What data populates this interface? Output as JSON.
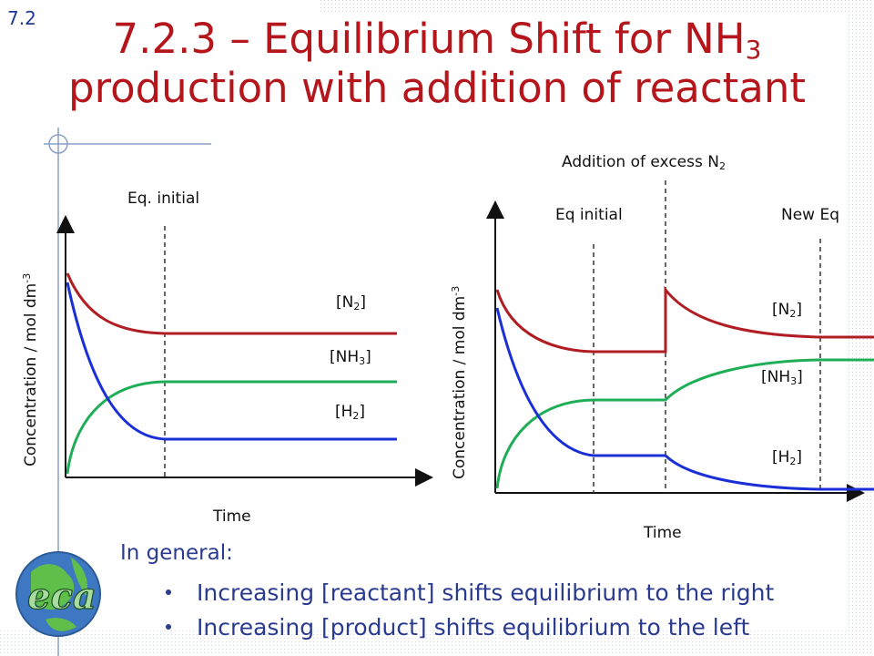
{
  "section_number": "7.2",
  "title": {
    "line1_prefix": "7.2.3 – Equilibrium Shift for NH",
    "line1_sub": "3",
    "line2": "production with addition of reactant"
  },
  "left_chart": {
    "event_label": "Eq. initial",
    "ylabel": "Concentration / mol dm",
    "ylabel_exp": "-3",
    "xlabel": "Time",
    "n2_label": "[N",
    "n2_sub": "2",
    "nh3_label": "[NH",
    "nh3_sub": "3",
    "h2_label": "[H",
    "h2_sub": "2",
    "close": "]"
  },
  "right_chart": {
    "addition_label": "Addition of excess N",
    "addition_sub": "2",
    "eq_initial_label": "Eq initial",
    "new_eq_label": "New Eq",
    "ylabel": "Concentration / mol dm",
    "ylabel_exp": "-3",
    "xlabel": "Time",
    "n2_label": "[N",
    "n2_sub": "2",
    "nh3_label": "[NH",
    "nh3_sub": "3",
    "h2_label": "[H",
    "h2_sub": "2",
    "close": "]"
  },
  "general": {
    "heading": "In general:",
    "bullets": [
      "Increasing [reactant] shifts equilibrium to the right",
      "Increasing [product] shifts equilibrium to the left"
    ]
  },
  "colors": {
    "title": "#b4161b",
    "n2": "#b01e23",
    "nh3": "#1fae57",
    "h2": "#1a2fd6",
    "text_blue": "#2a3a8f"
  }
}
